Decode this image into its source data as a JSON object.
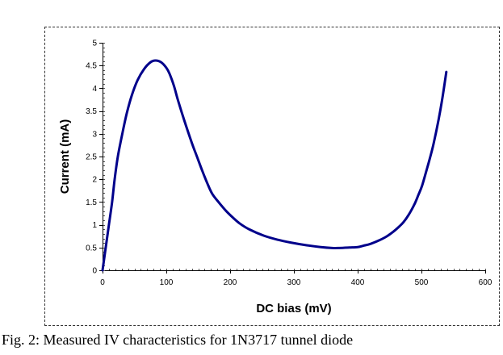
{
  "caption": "Fig. 2: Measured IV characteristics for 1N3717 tunnel diode",
  "chart_data": {
    "type": "line",
    "title": "",
    "xlabel": "DC bias (mV)",
    "ylabel": "Current (mA)",
    "xlim": [
      0,
      600
    ],
    "ylim": [
      0,
      5
    ],
    "xticks": [
      0,
      100,
      200,
      300,
      400,
      500,
      600
    ],
    "xtick_labels": [
      "0",
      "100",
      "200",
      "300",
      "400",
      "500",
      "600"
    ],
    "yticks": [
      0,
      0.5,
      1,
      1.5,
      2,
      2.5,
      3,
      3.5,
      4,
      4.5,
      5
    ],
    "ytick_labels": [
      "0",
      "0.5",
      "1",
      "1.5",
      "2",
      "2.5",
      "3",
      "3.5",
      "4",
      "4.5",
      "5"
    ],
    "grid": false,
    "legend": "none",
    "series": [
      {
        "name": "IV curve",
        "color": "#00008b",
        "x": [
          0,
          5,
          10,
          15,
          19,
          24,
          31,
          38,
          46,
          55,
          65,
          75,
          83,
          92,
          100,
          105,
          112,
          118,
          128,
          140,
          148,
          156,
          164,
          172,
          183,
          194,
          205,
          215,
          230,
          253,
          275,
          295,
          320,
          342,
          360,
          371,
          387,
          400,
          409,
          420,
          434,
          445,
          456,
          465,
          472,
          480,
          489,
          495,
          501,
          508,
          513,
          519,
          527,
          533,
          539
        ],
        "y": [
          0,
          0.5,
          1.0,
          1.5,
          2.0,
          2.5,
          3.0,
          3.45,
          3.85,
          4.18,
          4.42,
          4.57,
          4.61,
          4.57,
          4.45,
          4.32,
          4.05,
          3.75,
          3.3,
          2.8,
          2.5,
          2.2,
          1.92,
          1.68,
          1.48,
          1.3,
          1.15,
          1.03,
          0.9,
          0.76,
          0.67,
          0.61,
          0.55,
          0.51,
          0.49,
          0.49,
          0.5,
          0.51,
          0.54,
          0.58,
          0.66,
          0.74,
          0.85,
          0.96,
          1.06,
          1.22,
          1.45,
          1.65,
          1.86,
          2.2,
          2.45,
          2.78,
          3.32,
          3.8,
          4.36
        ]
      }
    ]
  }
}
